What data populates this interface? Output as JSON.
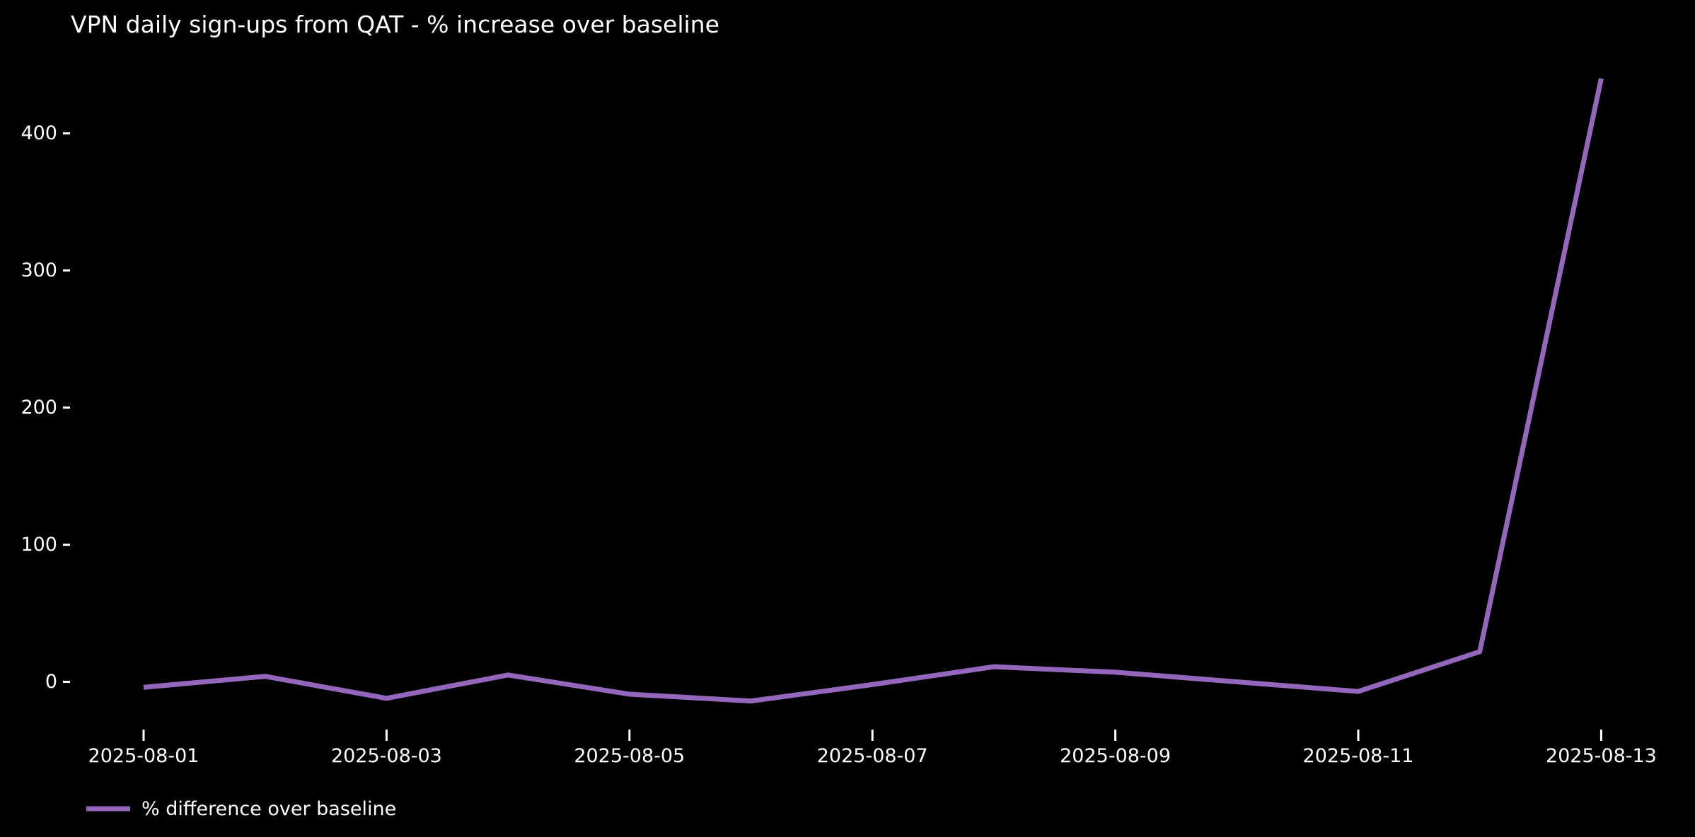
{
  "title": "VPN daily sign-ups from QAT - % increase over baseline",
  "colors": {
    "background": "#000000",
    "text": "#ffffff",
    "line": "#9467bd"
  },
  "legend": {
    "label": "% difference over baseline"
  },
  "chart_data": {
    "type": "line",
    "title": "VPN daily sign-ups from QAT - % increase over baseline",
    "xlabel": "",
    "ylabel": "",
    "x": [
      "2025-08-01",
      "2025-08-02",
      "2025-08-03",
      "2025-08-04",
      "2025-08-05",
      "2025-08-06",
      "2025-08-07",
      "2025-08-08",
      "2025-08-09",
      "2025-08-10",
      "2025-08-11",
      "2025-08-12",
      "2025-08-13"
    ],
    "series": [
      {
        "name": "% difference over baseline",
        "values": [
          -4,
          4,
          -12,
          5,
          -9,
          -14,
          -2,
          11,
          7,
          0,
          -7,
          22,
          440
        ]
      }
    ],
    "xticks": [
      "2025-08-01",
      "2025-08-03",
      "2025-08-05",
      "2025-08-07",
      "2025-08-09",
      "2025-08-11",
      "2025-08-13"
    ],
    "yticks": [
      0,
      100,
      200,
      300,
      400
    ],
    "ylim": [
      -25,
      460
    ],
    "grid": false,
    "legend_position": "lower left"
  }
}
